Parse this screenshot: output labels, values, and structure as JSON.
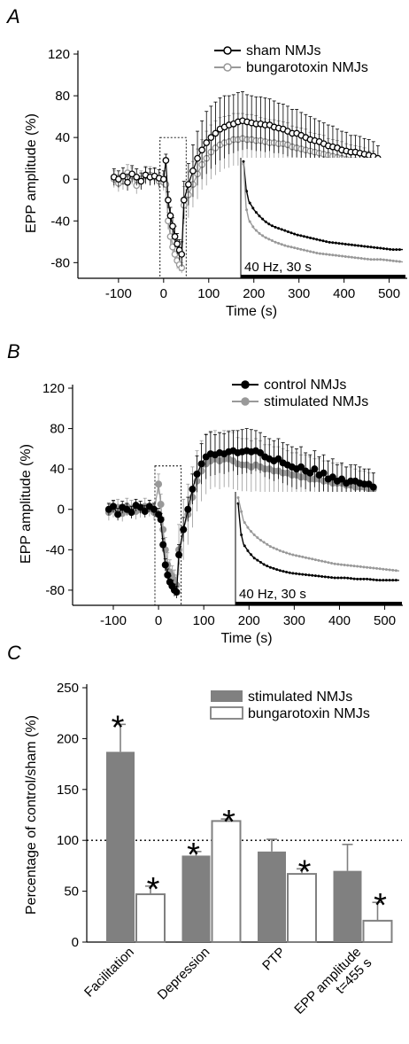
{
  "chart_data": [
    {
      "panel": "A",
      "type": "line",
      "xlabel": "Time (s)",
      "ylabel": "EPP amplitude (%)",
      "xticks": [
        -100,
        0,
        100,
        200,
        300,
        400,
        500
      ],
      "yticks": [
        -80,
        -40,
        0,
        40,
        80,
        120
      ],
      "xlim": [
        -190,
        540
      ],
      "ylim": [
        -95,
        120
      ],
      "inset_label": "40 Hz, 30 s",
      "legend_position": "top-right",
      "series": [
        {
          "name": "sham NMJs",
          "color": "#000000",
          "marker": "open-circle",
          "x": [
            -110,
            -100,
            -90,
            -80,
            -70,
            -60,
            -50,
            -40,
            -30,
            -20,
            -10,
            0,
            5,
            10,
            15,
            20,
            25,
            30,
            35,
            40,
            45,
            55,
            65,
            75,
            85,
            95,
            105,
            115,
            125,
            135,
            145,
            155,
            165,
            175,
            185,
            195,
            205,
            215,
            225,
            235,
            245,
            255,
            265,
            275,
            285,
            295,
            305,
            315,
            325,
            335,
            345,
            355,
            365,
            375,
            385,
            395,
            405,
            415,
            425,
            435,
            445,
            455,
            465,
            475
          ],
          "y": [
            2,
            0,
            3,
            -3,
            5,
            2,
            -2,
            4,
            2,
            3,
            1,
            0,
            18,
            -20,
            -35,
            -45,
            -55,
            -62,
            -68,
            -72,
            -20,
            -5,
            8,
            20,
            28,
            35,
            40,
            44,
            48,
            50,
            52,
            53,
            55,
            56,
            55,
            54,
            53,
            53,
            52,
            52,
            50,
            49,
            48,
            46,
            44,
            44,
            42,
            40,
            38,
            37,
            36,
            34,
            32,
            31,
            30,
            28,
            27,
            26,
            26,
            25,
            24,
            23,
            22,
            20
          ],
          "error": [
            8,
            8,
            8,
            8,
            8,
            8,
            8,
            8,
            8,
            8,
            8,
            8,
            6,
            8,
            8,
            8,
            10,
            10,
            10,
            12,
            18,
            20,
            25,
            26,
            28,
            30,
            30,
            30,
            30,
            30,
            28,
            28,
            28,
            28,
            26,
            26,
            26,
            26,
            26,
            25,
            25,
            24,
            24,
            24,
            23,
            23,
            22,
            22,
            22,
            21,
            20,
            20,
            20,
            20,
            18,
            18,
            18,
            16,
            16,
            16,
            15,
            15,
            14,
            12
          ]
        },
        {
          "name": "bungarotoxin NMJs",
          "color": "#999999",
          "marker": "open-circle",
          "x": [
            -110,
            -100,
            -90,
            -80,
            -70,
            -60,
            -50,
            -40,
            -30,
            -20,
            -10,
            0,
            5,
            10,
            15,
            20,
            25,
            30,
            35,
            40,
            45,
            55,
            65,
            75,
            85,
            95,
            105,
            115,
            125,
            135,
            145,
            155,
            165,
            175,
            185,
            195,
            205,
            215,
            225,
            235,
            245,
            255,
            265,
            275,
            285,
            295,
            305,
            315,
            325,
            335,
            345,
            355,
            365,
            375,
            385,
            395,
            405,
            415,
            425,
            435,
            445,
            455,
            465,
            475
          ],
          "y": [
            0,
            -4,
            -2,
            6,
            3,
            -6,
            0,
            3,
            4,
            2,
            -2,
            -3,
            -5,
            -40,
            -55,
            -65,
            -72,
            -78,
            -82,
            -85,
            -25,
            -15,
            -5,
            5,
            14,
            20,
            26,
            30,
            33,
            35,
            36,
            38,
            38,
            39,
            38,
            38,
            37,
            37,
            36,
            35,
            35,
            34,
            34,
            33,
            31,
            30,
            29,
            28,
            27,
            26,
            25,
            24,
            23,
            22,
            21,
            20,
            19,
            18,
            18,
            17,
            16,
            15,
            15,
            5
          ],
          "error": [
            8,
            8,
            8,
            8,
            8,
            8,
            8,
            8,
            8,
            8,
            8,
            8,
            8,
            8,
            8,
            8,
            8,
            8,
            6,
            5,
            18,
            22,
            22,
            24,
            24,
            26,
            26,
            26,
            26,
            25,
            25,
            25,
            25,
            24,
            24,
            24,
            24,
            22,
            22,
            22,
            22,
            22,
            21,
            21,
            20,
            20,
            20,
            20,
            18,
            18,
            18,
            18,
            16,
            16,
            16,
            16,
            15,
            15,
            14,
            14,
            14,
            12,
            12,
            10
          ]
        }
      ],
      "inset_series": [
        {
          "name": "sham NMJs",
          "color": "#000000",
          "x": [
            0,
            0.5,
            1,
            2,
            3,
            4,
            5,
            6,
            8,
            10,
            12,
            14,
            16,
            18,
            20,
            22,
            24,
            26,
            28,
            30
          ],
          "y": [
            -3,
            -25,
            -35,
            -42,
            -47,
            -51,
            -54,
            -56,
            -59,
            -62,
            -64,
            -66,
            -68,
            -69,
            -70,
            -71,
            -72,
            -73,
            -74,
            -74
          ]
        },
        {
          "name": "bungarotoxin NMJs",
          "color": "#999999",
          "x": [
            0,
            0.5,
            1,
            2,
            3,
            4,
            5,
            6,
            8,
            10,
            12,
            14,
            16,
            18,
            20,
            22,
            24,
            26,
            28,
            30
          ],
          "y": [
            -5,
            -40,
            -50,
            -57,
            -61,
            -64,
            -66,
            -68,
            -71,
            -73,
            -75,
            -77,
            -78,
            -79,
            -80,
            -81,
            -82,
            -82,
            -83,
            -84
          ]
        }
      ]
    },
    {
      "panel": "B",
      "type": "line",
      "xlabel": "Time (s)",
      "ylabel": "EPP amplitude (%)",
      "xticks": [
        -100,
        0,
        100,
        200,
        300,
        400,
        500
      ],
      "yticks": [
        -80,
        -40,
        0,
        40,
        80,
        120
      ],
      "xlim": [
        -190,
        540
      ],
      "ylim": [
        -95,
        120
      ],
      "inset_label": "40 Hz, 30 s",
      "legend_position": "top-right",
      "series": [
        {
          "name": "control NMJs",
          "color": "#000000",
          "marker": "filled-circle",
          "x": [
            -110,
            -100,
            -90,
            -80,
            -70,
            -60,
            -50,
            -40,
            -30,
            -20,
            -10,
            0,
            5,
            10,
            15,
            20,
            25,
            30,
            35,
            40,
            45,
            55,
            65,
            75,
            85,
            95,
            105,
            115,
            125,
            135,
            145,
            155,
            165,
            175,
            185,
            195,
            205,
            215,
            225,
            235,
            245,
            255,
            265,
            275,
            285,
            295,
            305,
            315,
            325,
            335,
            345,
            355,
            365,
            375,
            385,
            395,
            405,
            415,
            425,
            435,
            445,
            455,
            465,
            475
          ],
          "y": [
            0,
            3,
            -5,
            2,
            0,
            -3,
            4,
            2,
            -2,
            3,
            0,
            -5,
            -10,
            -35,
            -55,
            -65,
            -72,
            -76,
            -80,
            -82,
            -45,
            -20,
            0,
            20,
            35,
            45,
            52,
            55,
            54,
            56,
            55,
            57,
            58,
            56,
            57,
            58,
            57,
            58,
            56,
            52,
            50,
            48,
            50,
            46,
            44,
            42,
            40,
            42,
            38,
            36,
            40,
            34,
            36,
            30,
            32,
            28,
            30,
            26,
            28,
            28,
            26,
            25,
            25,
            22
          ],
          "error": [
            6,
            6,
            6,
            6,
            6,
            6,
            6,
            6,
            6,
            6,
            6,
            6,
            6,
            6,
            6,
            6,
            6,
            6,
            6,
            6,
            10,
            12,
            12,
            15,
            18,
            20,
            22,
            22,
            20,
            20,
            20,
            20,
            20,
            22,
            22,
            22,
            22,
            20,
            20,
            20,
            20,
            20,
            20,
            20,
            20,
            20,
            20,
            20,
            18,
            18,
            18,
            18,
            18,
            18,
            18,
            16,
            16,
            16,
            16,
            16,
            16,
            15,
            15,
            14
          ]
        },
        {
          "name": "stimulated NMJs",
          "color": "#999999",
          "marker": "filled-circle",
          "x": [
            -110,
            -100,
            -90,
            -80,
            -70,
            -60,
            -50,
            -40,
            -30,
            -20,
            -10,
            0,
            5,
            10,
            15,
            20,
            25,
            30,
            35,
            40,
            45,
            55,
            65,
            75,
            85,
            95,
            105,
            115,
            125,
            135,
            145,
            155,
            165,
            175,
            185,
            195,
            205,
            215,
            225,
            235,
            245,
            255,
            265,
            275,
            285,
            295,
            305,
            315,
            325,
            335,
            345,
            355,
            365,
            375,
            385,
            395,
            405,
            415,
            425,
            435,
            445,
            455,
            465,
            475
          ],
          "y": [
            -3,
            0,
            2,
            -4,
            3,
            1,
            -2,
            0,
            3,
            1,
            -3,
            25,
            5,
            -20,
            -40,
            -55,
            -62,
            -66,
            -70,
            -75,
            -40,
            -20,
            -5,
            12,
            28,
            38,
            45,
            48,
            50,
            48,
            50,
            50,
            48,
            45,
            44,
            44,
            42,
            44,
            42,
            40,
            40,
            38,
            38,
            36,
            36,
            34,
            34,
            32,
            32,
            30,
            30,
            30,
            28,
            28,
            26,
            26,
            26,
            24,
            24,
            22,
            22,
            22,
            20,
            20
          ],
          "error": [
            8,
            8,
            8,
            8,
            8,
            8,
            8,
            8,
            8,
            8,
            8,
            10,
            10,
            12,
            12,
            12,
            12,
            10,
            10,
            10,
            25,
            30,
            30,
            30,
            30,
            30,
            30,
            28,
            28,
            28,
            28,
            28,
            28,
            26,
            26,
            26,
            26,
            26,
            26,
            24,
            24,
            24,
            24,
            24,
            22,
            22,
            22,
            22,
            22,
            22,
            20,
            20,
            20,
            20,
            20,
            20,
            18,
            18,
            18,
            18,
            16,
            16,
            16,
            16
          ]
        }
      ],
      "inset_series": [
        {
          "name": "control NMJs",
          "color": "#000000",
          "x": [
            0,
            0.5,
            1,
            2,
            3,
            4,
            5,
            6,
            8,
            10,
            12,
            14,
            16,
            18,
            20,
            22,
            24,
            26,
            28,
            30
          ],
          "y": [
            -10,
            -35,
            -45,
            -52,
            -57,
            -60,
            -63,
            -65,
            -68,
            -70,
            -71,
            -72,
            -73,
            -74,
            -74,
            -75,
            -75,
            -76,
            -76,
            -76
          ]
        },
        {
          "name": "stimulated NMJs",
          "color": "#999999",
          "x": [
            0,
            0.5,
            1,
            2,
            3,
            4,
            5,
            6,
            8,
            10,
            12,
            14,
            16,
            18,
            20,
            22,
            24,
            26,
            28,
            30
          ],
          "y": [
            -5,
            -15,
            -25,
            -32,
            -37,
            -41,
            -44,
            -47,
            -51,
            -54,
            -56,
            -58,
            -60,
            -62,
            -63,
            -64,
            -65,
            -66,
            -67,
            -68
          ]
        }
      ]
    },
    {
      "panel": "C",
      "type": "bar",
      "ylabel": "Percentage of control/sham (%)",
      "yticks": [
        0,
        50,
        100,
        150,
        200,
        250
      ],
      "ylim": [
        0,
        250
      ],
      "reference_line": 100,
      "legend_position": "top-right",
      "categories": [
        "Facilitation",
        "Depression",
        "PTP",
        "EPP amplitude\nt=455 s"
      ],
      "category_lines": [
        [
          "Facilitation"
        ],
        [
          "Depression"
        ],
        [
          "PTP"
        ],
        [
          "EPP amplitude",
          "t=455 s"
        ]
      ],
      "series": [
        {
          "name": "stimulated NMJs",
          "fill": "#808080",
          "values": [
            187,
            85,
            89,
            70
          ],
          "error": [
            27,
            4,
            12,
            26
          ],
          "significant": [
            true,
            true,
            false,
            false
          ]
        },
        {
          "name": "bungarotoxin NMJs",
          "fill": "#ffffff",
          "stroke": "#808080",
          "values": [
            47,
            119,
            67,
            21
          ],
          "error": [
            8,
            2,
            5,
            18
          ],
          "significant": [
            true,
            true,
            true,
            true
          ]
        }
      ],
      "significance_marker": "*"
    }
  ]
}
